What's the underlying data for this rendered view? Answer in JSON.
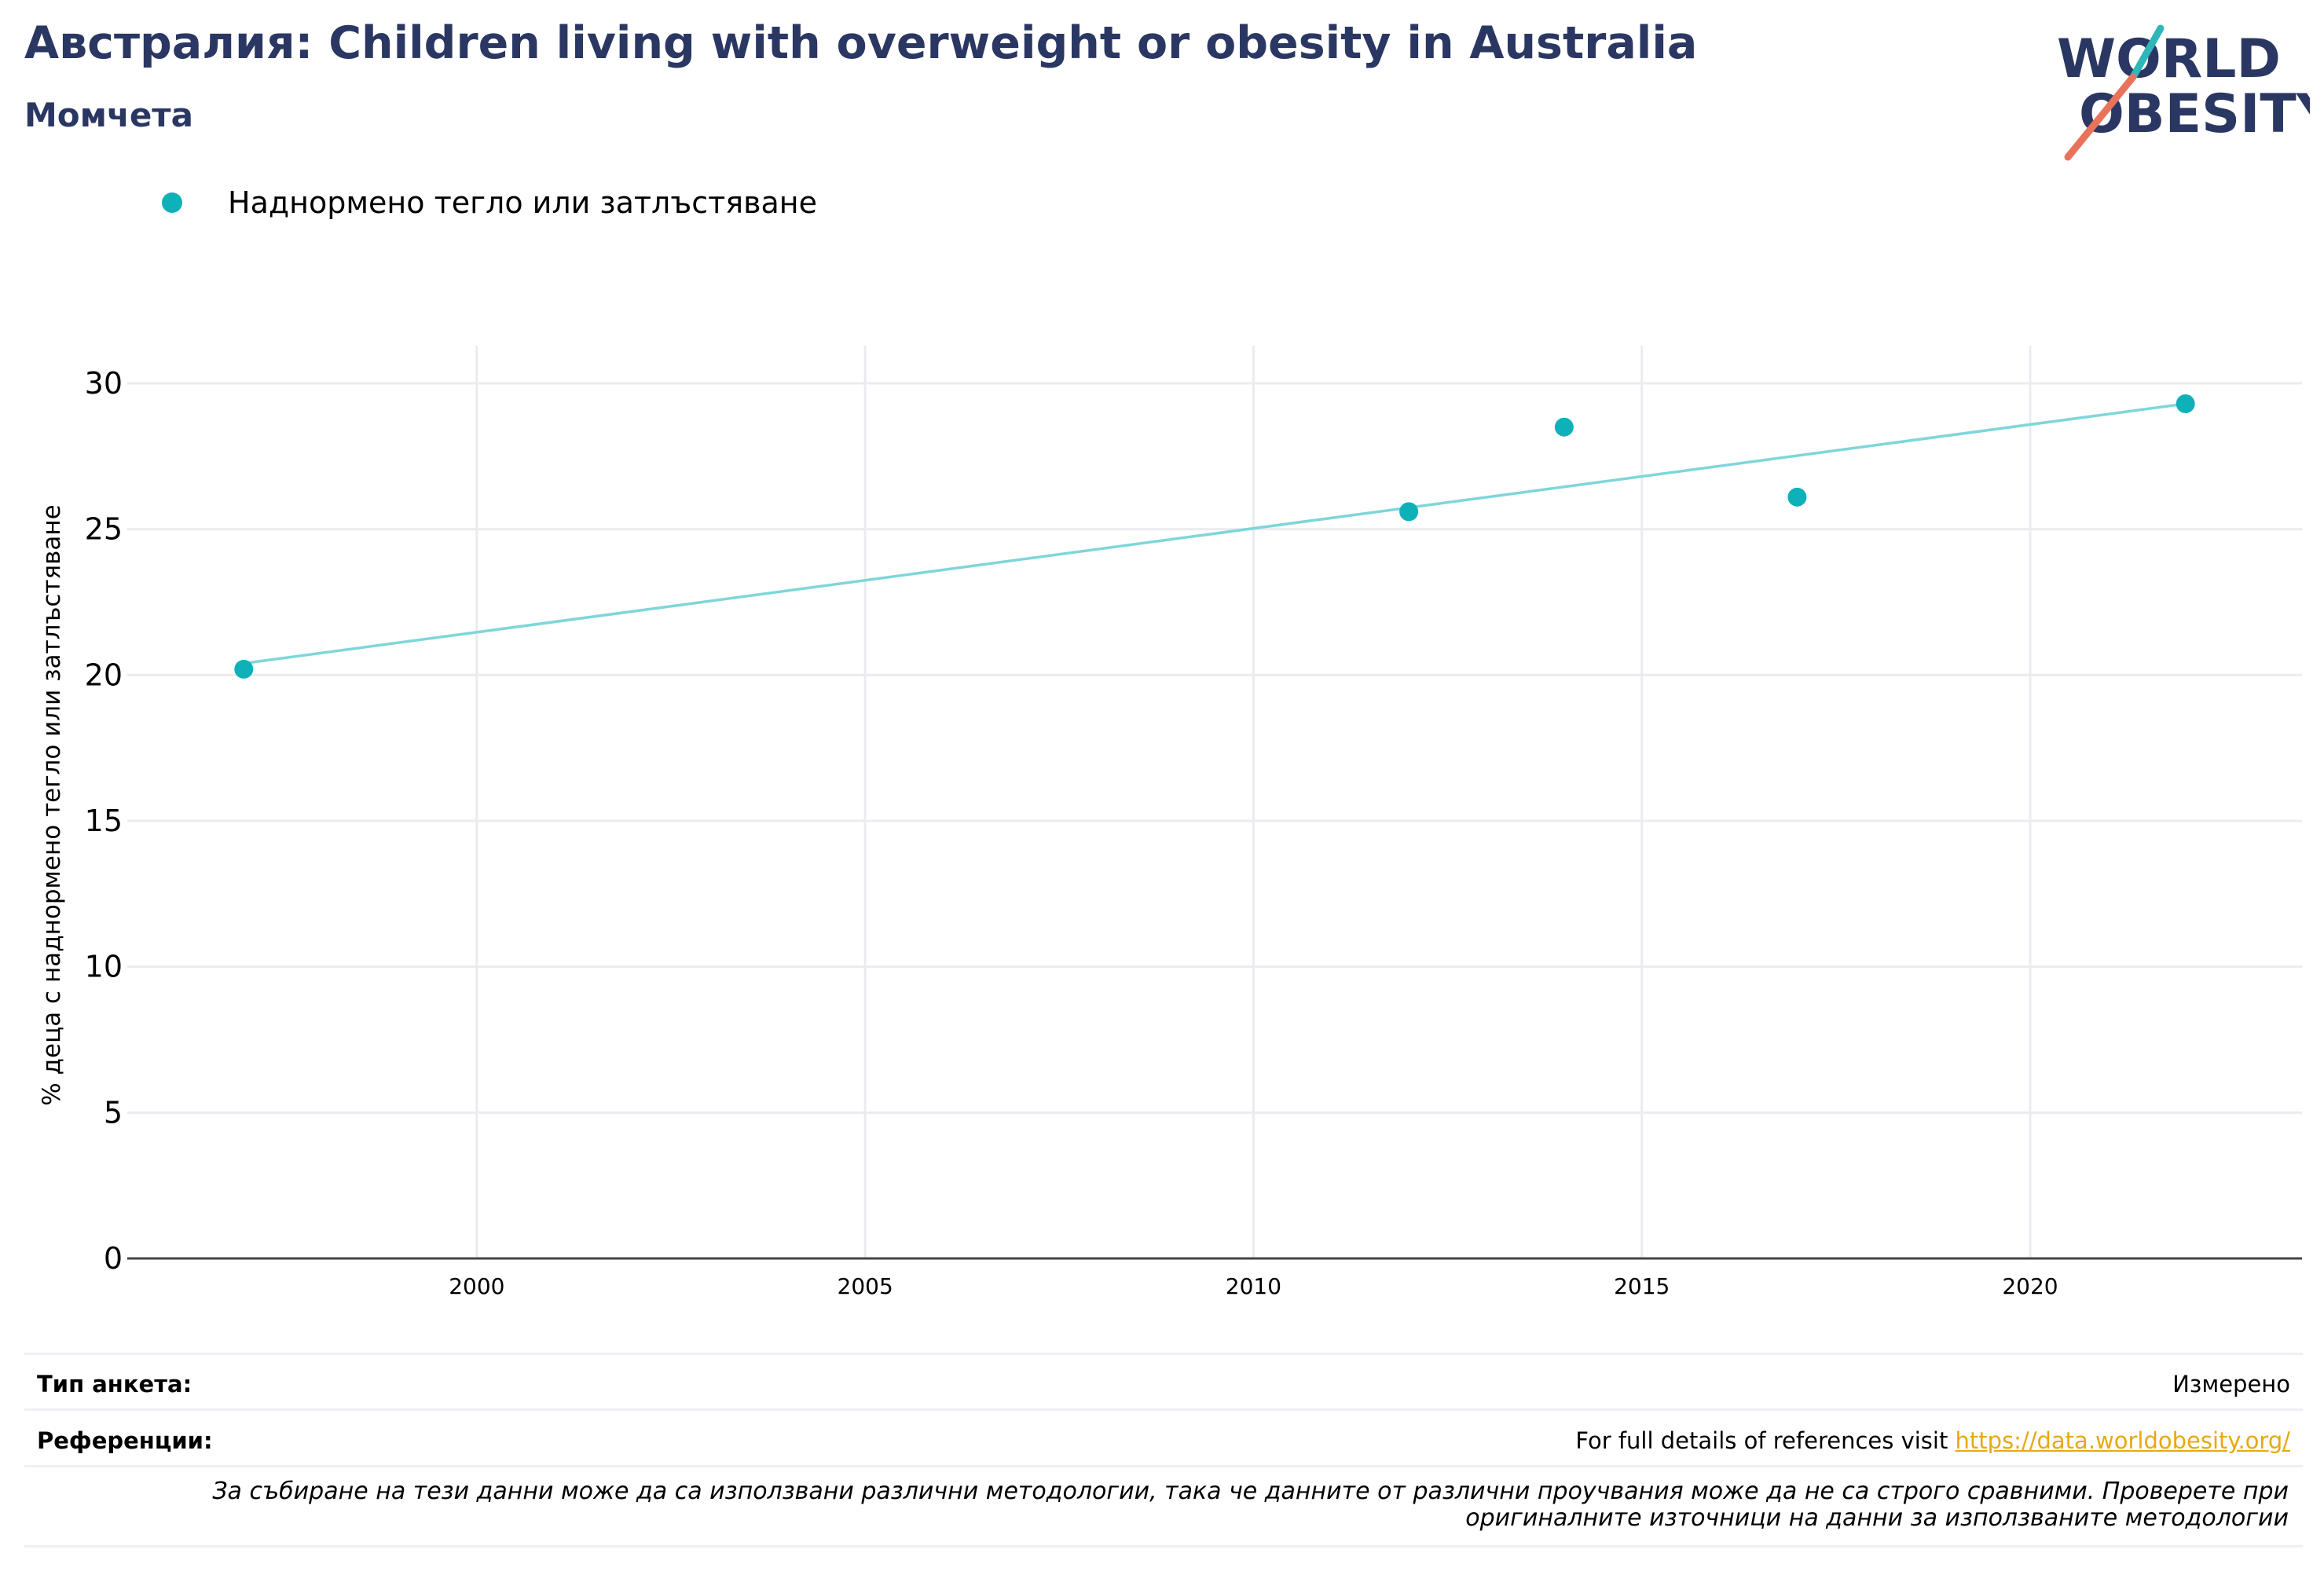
{
  "header": {
    "title": "Австралия: Children living with overweight or obesity in Australia",
    "subtitle": "Момчета"
  },
  "logo": {
    "line1": "WORLD",
    "line2": "OBESITY"
  },
  "legend": {
    "label": "Наднормено тегло или затлъстяване"
  },
  "colors": {
    "title": "#2b3763",
    "point": "#0fb1b9",
    "trend": "#7fd6da",
    "grid": "#ebecf0",
    "axis": "#444444",
    "link": "#e8a812",
    "logo_slash_top": "#2fb6b8",
    "logo_slash_bottom": "#e8735a"
  },
  "chart_data": {
    "type": "scatter",
    "ylabel": "% деца с наднормено тегло или затлъстяване",
    "xlabel": "",
    "xlim": [
      1995.5,
      2023.5
    ],
    "ylim": [
      0,
      30
    ],
    "xticks": [
      "2000",
      "2005",
      "2010",
      "2015",
      "2020"
    ],
    "yticks": [
      "0",
      "5",
      "10",
      "15",
      "20",
      "25",
      "30"
    ],
    "series": [
      {
        "name": "Наднормено тегло или затлъстяване",
        "points": [
          {
            "x": 1997,
            "y": 20.2
          },
          {
            "x": 2012,
            "y": 25.6
          },
          {
            "x": 2014,
            "y": 28.5
          },
          {
            "x": 2017,
            "y": 26.1
          },
          {
            "x": 2022,
            "y": 29.3
          }
        ]
      }
    ],
    "trendline": {
      "from": {
        "x": 1997,
        "y": 20.4
      },
      "to": {
        "x": 2022,
        "y": 29.3
      }
    },
    "grid": true
  },
  "footer": {
    "survey_key": "Тип анкета:",
    "survey_value": "Измерено",
    "refs_key": "Референции:",
    "refs_text": "For full details of references visit ",
    "refs_link": "https://data.worldobesity.org/",
    "note_line1": "За събиране на тези данни може да са използвани различни методологии, така че данните от различни проучвания може да не са строго сравними. Проверете при",
    "note_line2": "оригиналните източници на данни за използваните методологии"
  }
}
